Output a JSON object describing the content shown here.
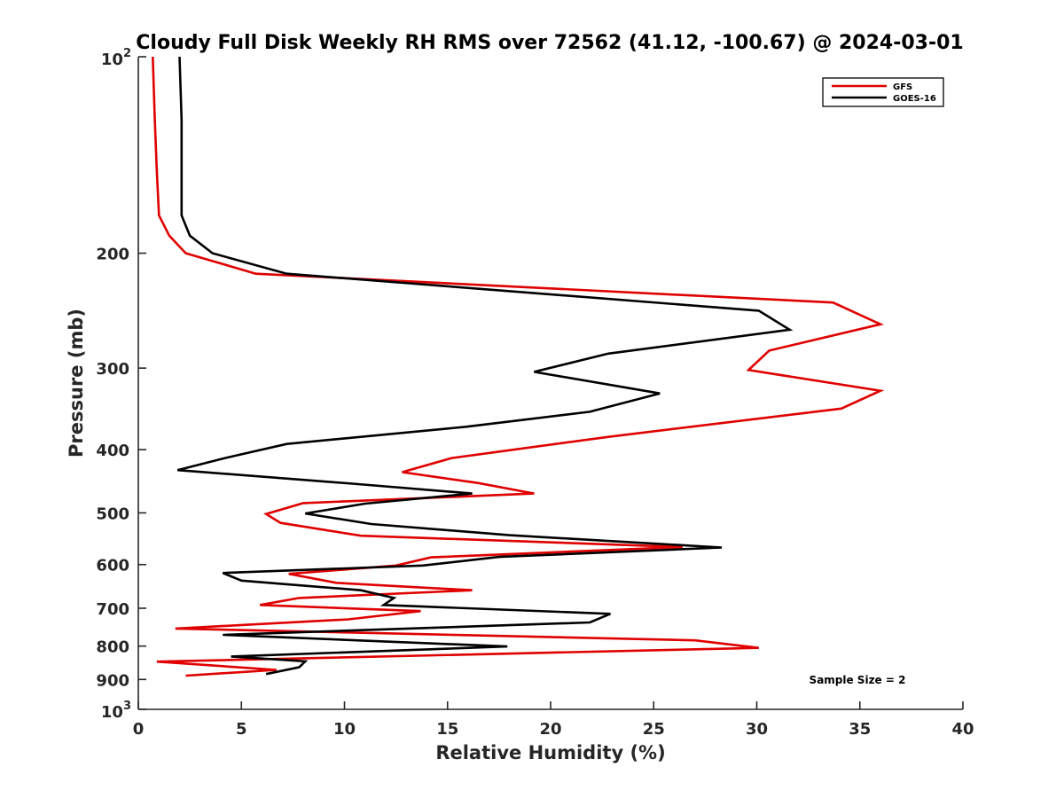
{
  "chart_data": {
    "type": "line",
    "title": "Cloudy Full Disk Weekly RH RMS over 72562 (41.12, -100.67) @ 2024-03-01",
    "xlabel": "Relative Humidity (%)",
    "ylabel": "Pressure (mb)",
    "xlim": [
      0,
      40
    ],
    "ylim": [
      100,
      1000
    ],
    "y_scale": "log",
    "y_reversed": true,
    "grid": false,
    "legend_position": "top-right",
    "x_ticks": [
      "0",
      "5",
      "10",
      "15",
      "20",
      "25",
      "30",
      "35",
      "40"
    ],
    "y_ticks": [
      {
        "value": 100,
        "base": "10",
        "exp": "2"
      },
      {
        "value": 200,
        "label": "200"
      },
      {
        "value": 300,
        "label": "300"
      },
      {
        "value": 400,
        "label": "400"
      },
      {
        "value": 500,
        "label": "500"
      },
      {
        "value": 600,
        "label": "600"
      },
      {
        "value": 700,
        "label": "700"
      },
      {
        "value": 800,
        "label": "800"
      },
      {
        "value": 900,
        "label": "900"
      },
      {
        "value": 1000,
        "base": "10",
        "exp": "3"
      }
    ],
    "annotation": "Sample Size = 2",
    "series": [
      {
        "name": "GFS",
        "color": "#e00000",
        "points": [
          [
            0.7,
            100
          ],
          [
            0.8,
            125
          ],
          [
            0.9,
            150
          ],
          [
            1.0,
            175
          ],
          [
            1.5,
            188
          ],
          [
            2.3,
            200
          ],
          [
            5.7,
            215
          ],
          [
            33.7,
            238
          ],
          [
            36.0,
            257
          ],
          [
            30.6,
            282
          ],
          [
            29.6,
            302
          ],
          [
            36.0,
            325
          ],
          [
            34.1,
            346
          ],
          [
            22.9,
            382
          ],
          [
            15.2,
            412
          ],
          [
            12.8,
            433
          ],
          [
            16.5,
            450
          ],
          [
            19.2,
            467
          ],
          [
            8.0,
            483
          ],
          [
            6.2,
            502
          ],
          [
            6.9,
            518
          ],
          [
            10.8,
            542
          ],
          [
            26.4,
            564
          ],
          [
            14.2,
            585
          ],
          [
            12.5,
            602
          ],
          [
            7.3,
            620
          ],
          [
            9.6,
            640
          ],
          [
            16.2,
            657
          ],
          [
            7.8,
            675
          ],
          [
            5.9,
            692
          ],
          [
            13.7,
            707
          ],
          [
            10.2,
            728
          ],
          [
            1.8,
            752
          ],
          [
            27.0,
            784
          ],
          [
            30.1,
            805
          ],
          [
            0.9,
            845
          ],
          [
            6.7,
            870
          ],
          [
            2.3,
            888
          ]
        ]
      },
      {
        "name": "GOES-16",
        "color": "#000000",
        "points": [
          [
            2.0,
            100
          ],
          [
            2.1,
            125
          ],
          [
            2.1,
            150
          ],
          [
            2.1,
            175
          ],
          [
            2.5,
            188
          ],
          [
            3.6,
            200
          ],
          [
            7.2,
            215
          ],
          [
            30.1,
            245
          ],
          [
            31.6,
            262
          ],
          [
            22.8,
            285
          ],
          [
            19.2,
            304
          ],
          [
            25.3,
            328
          ],
          [
            21.9,
            350
          ],
          [
            15.9,
            369
          ],
          [
            7.2,
            392
          ],
          [
            4.2,
            412
          ],
          [
            1.9,
            430
          ],
          [
            10.4,
            451
          ],
          [
            16.2,
            467
          ],
          [
            11.0,
            484
          ],
          [
            8.1,
            501
          ],
          [
            11.3,
            520
          ],
          [
            18.0,
            541
          ],
          [
            28.3,
            565
          ],
          [
            17.5,
            584
          ],
          [
            13.8,
            602
          ],
          [
            4.1,
            618
          ],
          [
            5.0,
            635
          ],
          [
            10.8,
            657
          ],
          [
            12.4,
            675
          ],
          [
            11.9,
            692
          ],
          [
            22.9,
            714
          ],
          [
            21.9,
            736
          ],
          [
            4.1,
            769
          ],
          [
            17.9,
            801
          ],
          [
            4.5,
            830
          ],
          [
            8.1,
            844
          ],
          [
            7.8,
            862
          ],
          [
            6.2,
            883
          ]
        ]
      }
    ]
  }
}
